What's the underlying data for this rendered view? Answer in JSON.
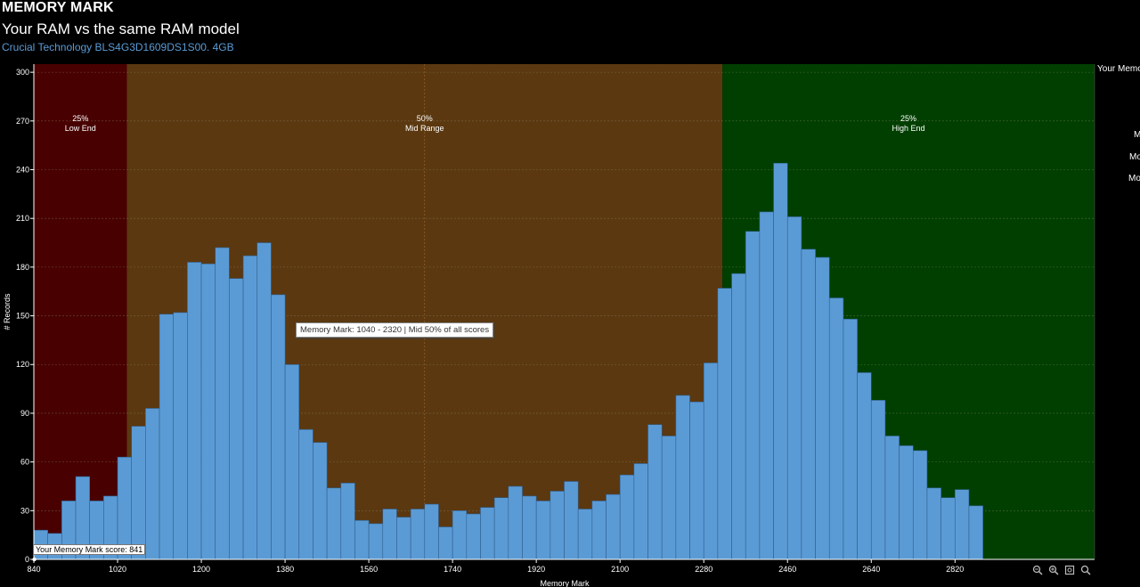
{
  "header": {
    "title": "MEMORY MARK",
    "subtitle": "Your RAM vs the same RAM model",
    "ram_model": "Crucial Technology BLS4G3D1609DS1S00. 4GB"
  },
  "legend_fragments": {
    "top": "Your Memo",
    "line1": "M",
    "line2": "Mo",
    "line3": "Mo"
  },
  "tooltip": "Memory Mark: 1040 - 2320 | Mid 50% of all scores",
  "score_label": "Your Memory Mark score: 841",
  "zoom_controls": [
    "zoom-out-icon",
    "zoom-in-icon",
    "zoom-fit-icon",
    "zoom-reset-icon"
  ],
  "chart_data": {
    "type": "bar",
    "xlabel": "Memory Mark",
    "ylabel": "# Records",
    "xlim": [
      840,
      3120
    ],
    "ylim": [
      0,
      305
    ],
    "yticks": [
      0,
      30,
      60,
      90,
      120,
      150,
      180,
      210,
      240,
      270,
      300
    ],
    "xticks": [
      840,
      1020,
      1200,
      1380,
      1560,
      1740,
      1920,
      2100,
      2280,
      2460,
      2640,
      2820
    ],
    "bin_start": 840,
    "bin_width": 30,
    "values": [
      18,
      16,
      36,
      51,
      36,
      39,
      63,
      82,
      93,
      151,
      152,
      183,
      182,
      192,
      173,
      187,
      195,
      163,
      120,
      80,
      72,
      44,
      47,
      24,
      22,
      31,
      26,
      31,
      34,
      20,
      30,
      28,
      32,
      38,
      45,
      39,
      36,
      42,
      48,
      31,
      36,
      40,
      52,
      59,
      83,
      76,
      101,
      97,
      121,
      167,
      176,
      202,
      214,
      244,
      211,
      191,
      186,
      161,
      148,
      115,
      98,
      76,
      70,
      67,
      44,
      38,
      43,
      33
    ],
    "regions": [
      {
        "from": 840,
        "to": 1040,
        "color": "#480000",
        "pct": "25%",
        "name": "Low End"
      },
      {
        "from": 1040,
        "to": 2320,
        "color": "#5b3810",
        "pct": "50%",
        "name": "Mid Range"
      },
      {
        "from": 2320,
        "to": 3120,
        "color": "#003f00",
        "pct": "25%",
        "name": "High End"
      }
    ],
    "marker": {
      "label": "Your Memory Mark score",
      "value": 841
    },
    "bar_color": "#5b9bd5",
    "grid": true
  }
}
